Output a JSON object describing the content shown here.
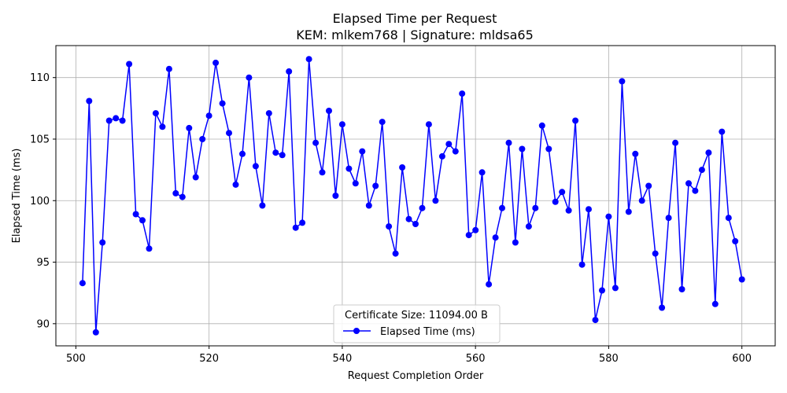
{
  "chart_data": {
    "type": "line",
    "title": "Elapsed Time per Request",
    "subtitle": "KEM: mlkem768 | Signature: mldsa65",
    "xlabel": "Request Completion Order",
    "ylabel": "Elapsed Time (ms)",
    "xlim": [
      497,
      605
    ],
    "ylim": [
      88.2,
      112.6
    ],
    "xticks": [
      500,
      520,
      540,
      560,
      580,
      600
    ],
    "yticks": [
      90,
      95,
      100,
      105,
      110
    ],
    "grid": true,
    "legend": {
      "title": "Certificate Size: 11094.00 B",
      "placement": "lower-center"
    },
    "series": [
      {
        "name": "Elapsed Time (ms)",
        "color": "#0000ff",
        "marker": "circle",
        "x": [
          501,
          502,
          503,
          504,
          505,
          506,
          507,
          508,
          509,
          510,
          511,
          512,
          513,
          514,
          515,
          516,
          517,
          518,
          519,
          520,
          521,
          522,
          523,
          524,
          525,
          526,
          527,
          528,
          529,
          530,
          531,
          532,
          533,
          534,
          535,
          536,
          537,
          538,
          539,
          540,
          541,
          542,
          543,
          544,
          545,
          546,
          547,
          548,
          549,
          550,
          551,
          552,
          553,
          554,
          555,
          556,
          557,
          558,
          559,
          560,
          561,
          562,
          563,
          564,
          565,
          566,
          567,
          568,
          569,
          570,
          571,
          572,
          573,
          574,
          575,
          576,
          577,
          578,
          579,
          580,
          581,
          582,
          583,
          584,
          585,
          586,
          587,
          588,
          589,
          590,
          591,
          592,
          593,
          594,
          595,
          596,
          597,
          598,
          599,
          600
        ],
        "y": [
          93.3,
          108.1,
          89.3,
          96.6,
          106.5,
          106.7,
          106.5,
          111.1,
          98.9,
          98.4,
          96.1,
          107.1,
          106.0,
          110.7,
          100.6,
          100.3,
          105.9,
          101.9,
          105.0,
          106.9,
          111.2,
          107.9,
          105.5,
          101.3,
          103.8,
          110.0,
          102.8,
          99.6,
          107.1,
          103.9,
          103.7,
          110.5,
          97.8,
          98.2,
          111.5,
          104.7,
          102.3,
          107.3,
          100.4,
          106.2,
          102.6,
          101.4,
          104.0,
          99.6,
          101.2,
          106.4,
          97.9,
          95.7,
          102.7,
          98.5,
          98.1,
          99.4,
          106.2,
          100.0,
          103.6,
          104.6,
          104.0,
          108.7,
          97.2,
          97.6,
          102.3,
          93.2,
          97.0,
          99.4,
          104.7,
          96.6,
          104.2,
          97.9,
          99.4,
          106.1,
          104.2,
          99.9,
          100.7,
          99.2,
          106.5,
          94.8,
          99.3,
          90.3,
          92.7,
          98.7,
          92.9,
          109.7,
          99.1,
          103.8,
          100.0,
          101.2,
          95.7,
          91.3,
          98.6,
          104.7,
          92.8,
          101.4,
          100.8,
          102.5,
          103.9,
          91.6,
          105.6,
          98.6,
          96.7,
          93.6
        ]
      }
    ]
  }
}
